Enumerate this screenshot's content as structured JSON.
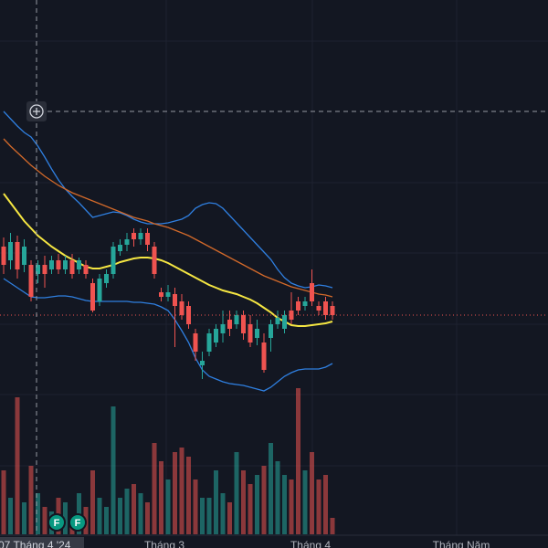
{
  "chart_data": {
    "type": "candlestick",
    "open": [
      16,
      14.5,
      16.5,
      14,
      14,
      13,
      14,
      13.5,
      14.5,
      13.5,
      14.5,
      13.5,
      14,
      12,
      10,
      12,
      13,
      15.5,
      16.2,
      17.5,
      16.8,
      17.5,
      16,
      11,
      10.5,
      10.8,
      10,
      9.5,
      6.5,
      3,
      4.5,
      5.5,
      6.5,
      8,
      7.5,
      8.5,
      7.5,
      6,
      5.5,
      6,
      7.5,
      7,
      9,
      10,
      9.5,
      12,
      9.5,
      10,
      9.5
    ],
    "high": [
      17,
      17.5,
      17.2,
      16.8,
      14.5,
      14.5,
      15,
      15,
      15.2,
      15,
      15.2,
      14.8,
      14.5,
      12.5,
      13,
      13.5,
      16.5,
      16.8,
      17.5,
      18,
      18,
      18,
      16.5,
      11.5,
      11.8,
      11.5,
      10.8,
      10,
      7,
      4.5,
      7,
      7.5,
      9,
      9,
      9,
      9,
      8.5,
      8,
      6.5,
      8,
      9,
      9,
      11,
      10.5,
      10.5,
      13.5,
      10,
      10.5,
      10
    ],
    "low": [
      13,
      13.5,
      12.5,
      13.2,
      10,
      12,
      11.5,
      13,
      13,
      13,
      12.5,
      13,
      12.5,
      8.8,
      9.5,
      11.5,
      12.5,
      15,
      15.5,
      16,
      16.2,
      15.5,
      12.5,
      10,
      10,
      5,
      8,
      7,
      3.5,
      1.5,
      4,
      5,
      5.5,
      6.2,
      7,
      5.8,
      5,
      5.2,
      2.2,
      4.5,
      7,
      6.5,
      7.5,
      8.5,
      9,
      9.5,
      8.5,
      8,
      8
    ],
    "close": [
      14,
      16.5,
      13.5,
      16,
      10.5,
      14,
      13,
      14.5,
      13.5,
      14.5,
      13,
      14.5,
      13,
      9,
      12.5,
      13,
      16,
      16.2,
      16.8,
      16.8,
      17.5,
      16.2,
      13,
      10.5,
      11,
      9.5,
      8.5,
      7.5,
      4.5,
      3.5,
      6.5,
      7,
      7.5,
      7,
      8.5,
      6.5,
      5.5,
      7,
      2.5,
      7.5,
      8.2,
      8.5,
      8,
      9,
      10,
      10,
      9,
      8.5,
      8.5
    ],
    "volume": [
      70,
      40,
      150,
      35,
      75,
      45,
      30,
      25,
      40,
      35,
      15,
      45,
      30,
      70,
      40,
      30,
      140,
      40,
      50,
      55,
      45,
      35,
      100,
      80,
      60,
      90,
      95,
      85,
      60,
      40,
      40,
      70,
      45,
      35,
      90,
      70,
      55,
      65,
      75,
      100,
      80,
      65,
      60,
      160,
      70,
      90,
      60,
      65,
      18
    ],
    "ylim": [
      0,
      43
    ],
    "volume_lim": [
      0,
      160
    ],
    "up_color": "#26a69a",
    "down_color": "#ef5350",
    "series": [
      {
        "color": "#2f7fe0",
        "values": [
          30.8,
          30,
          29.2,
          28.5,
          28,
          27,
          25.8,
          24.5,
          23.3,
          22.3,
          21.5,
          20.8,
          20,
          19.2,
          19.4,
          19.6,
          19.8,
          19.7,
          19.4,
          19,
          18.7,
          18.5,
          18.5,
          18.5,
          18.6,
          18.8,
          19,
          19.4,
          20.2,
          20.6,
          20.8,
          20.7,
          20.2,
          19.4,
          18.6,
          17.8,
          17,
          16.2,
          15.4,
          14.6,
          13.5,
          12.6,
          12,
          11.7,
          11.5,
          11.6,
          11.8,
          11.7,
          11.5
        ]
      },
      {
        "color": "#2f7fe0",
        "values": [
          12.5,
          12,
          11.5,
          11,
          10.5,
          10.4,
          10.4,
          10.5,
          10.6,
          10.6,
          10.5,
          10.3,
          10.1,
          10,
          10,
          10,
          10,
          10,
          10,
          9.9,
          9.9,
          9.8,
          9.7,
          9.4,
          9,
          8,
          6.8,
          5.5,
          3.8,
          2.5,
          1.8,
          1.5,
          1.2,
          1,
          0.9,
          0.8,
          0.6,
          0.4,
          0.2,
          0.6,
          1.2,
          1.8,
          2.2,
          2.5,
          2.6,
          2.6,
          2.6,
          2.8,
          3.2
        ]
      },
      {
        "color": "#d2692a",
        "values": [
          27.8,
          27,
          26.3,
          25.6,
          24.9,
          24.3,
          23.7,
          23.2,
          22.7,
          22.3,
          21.9,
          21.6,
          21.3,
          21,
          20.7,
          20.4,
          20.1,
          19.8,
          19.5,
          19.2,
          19,
          18.8,
          18.5,
          18.3,
          18.1,
          17.8,
          17.5,
          17.2,
          16.8,
          16.4,
          16,
          15.6,
          15.2,
          14.8,
          14.4,
          14,
          13.6,
          13.2,
          12.8,
          12.5,
          12.2,
          11.9,
          11.6,
          11.4,
          11.2,
          11,
          10.8,
          10.7,
          10.5
        ]
      },
      {
        "color": "#f5e642",
        "values": [
          21.8,
          20.8,
          19.8,
          18.8,
          18,
          17.2,
          16.6,
          16,
          15.5,
          15,
          14.6,
          14.2,
          13.8,
          13.6,
          13.6,
          13.8,
          14,
          14.3,
          14.5,
          14.7,
          14.8,
          14.8,
          14.7,
          14.5,
          14.2,
          13.8,
          13.4,
          13,
          12.6,
          12.2,
          11.8,
          11.5,
          11.2,
          11,
          10.8,
          10.5,
          10.2,
          9.8,
          9.3,
          8.8,
          8.2,
          7.8,
          7.4,
          7.3,
          7.3,
          7.4,
          7.5,
          7.6,
          7.8
        ]
      }
    ],
    "x_labels": [
      "Tháng 3",
      "Tháng 4",
      "Tháng Năm"
    ],
    "crosshair_label": "07 Tháng 4 '24",
    "markers": [
      "F",
      "F"
    ]
  }
}
